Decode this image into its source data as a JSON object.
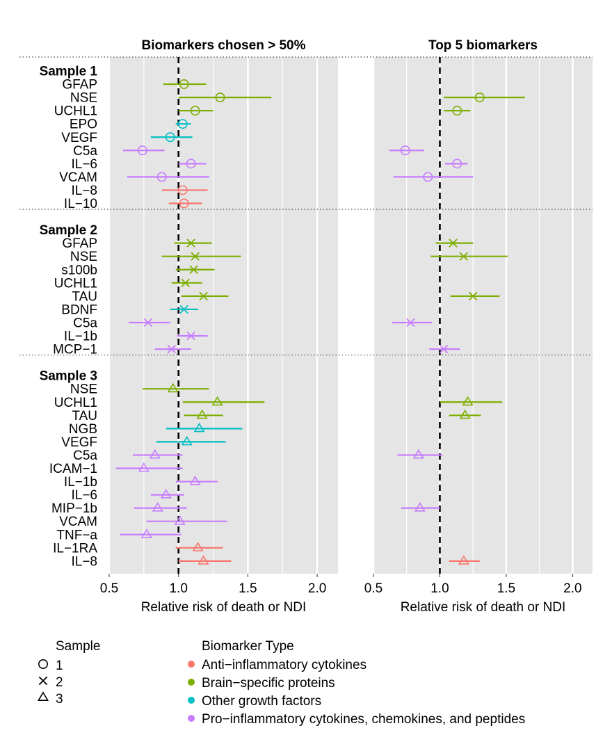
{
  "chart_data": {
    "type": "forest",
    "panels": [
      {
        "title": "Biomarkers chosen > 50%",
        "xlabel": "Relative risk of death or NDI"
      },
      {
        "title": "Top 5 biomarkers",
        "xlabel": "Relative risk of death or NDI"
      }
    ],
    "xlim": [
      0.5,
      2.15
    ],
    "xticks": [
      0.5,
      1.0,
      1.5,
      2.0
    ],
    "xtick_labels": [
      "0.5",
      "1.0",
      "1.5",
      "2.0"
    ],
    "reference_line": 1.0,
    "grid": true,
    "type_colors": {
      "anti": "#F8766D",
      "brain": "#7CAE00",
      "growth": "#00BFC4",
      "pro": "#C77CFF"
    },
    "groups": [
      {
        "label": "Sample 1",
        "sample": 1,
        "rows": [
          {
            "name": "GFAP",
            "type": "brain",
            "p1": [
              1.04,
              0.89,
              1.2
            ],
            "p2": null
          },
          {
            "name": "NSE",
            "type": "brain",
            "p1": [
              1.3,
              1.0,
              1.67
            ],
            "p2": [
              1.3,
              1.03,
              1.64
            ]
          },
          {
            "name": "UCHL1",
            "type": "brain",
            "p1": [
              1.12,
              1.0,
              1.25
            ],
            "p2": [
              1.13,
              1.03,
              1.23
            ]
          },
          {
            "name": "EPO",
            "type": "growth",
            "p1": [
              1.03,
              0.98,
              1.09
            ],
            "p2": null
          },
          {
            "name": "VEGF",
            "type": "growth",
            "p1": [
              0.94,
              0.8,
              1.1
            ],
            "p2": null
          },
          {
            "name": "C5a",
            "type": "pro",
            "p1": [
              0.74,
              0.6,
              0.9
            ],
            "p2": [
              0.74,
              0.62,
              0.88
            ]
          },
          {
            "name": "IL−6",
            "type": "pro",
            "p1": [
              1.09,
              1.0,
              1.2
            ],
            "p2": [
              1.13,
              1.04,
              1.21
            ]
          },
          {
            "name": "VCAM",
            "type": "pro",
            "p1": [
              0.88,
              0.63,
              1.22
            ],
            "p2": [
              0.91,
              0.65,
              1.25
            ]
          },
          {
            "name": "IL−8",
            "type": "anti",
            "p1": [
              1.03,
              0.88,
              1.21
            ],
            "p2": null
          },
          {
            "name": "IL−10",
            "type": "anti",
            "p1": [
              1.04,
              0.93,
              1.17
            ],
            "p2": null
          }
        ]
      },
      {
        "label": "Sample 2",
        "sample": 2,
        "rows": [
          {
            "name": "GFAP",
            "type": "brain",
            "p1": [
              1.09,
              0.97,
              1.24
            ],
            "p2": [
              1.1,
              0.97,
              1.25
            ]
          },
          {
            "name": "NSE",
            "type": "brain",
            "p1": [
              1.12,
              0.88,
              1.45
            ],
            "p2": [
              1.18,
              0.93,
              1.51
            ]
          },
          {
            "name": "s100b",
            "type": "brain",
            "p1": [
              1.11,
              0.98,
              1.26
            ],
            "p2": null
          },
          {
            "name": "UCHL1",
            "type": "brain",
            "p1": [
              1.05,
              0.95,
              1.17
            ],
            "p2": null
          },
          {
            "name": "TAU",
            "type": "brain",
            "p1": [
              1.18,
              1.02,
              1.36
            ],
            "p2": [
              1.25,
              1.08,
              1.45
            ]
          },
          {
            "name": "BDNF",
            "type": "growth",
            "p1": [
              1.04,
              0.94,
              1.14
            ],
            "p2": null
          },
          {
            "name": "C5a",
            "type": "pro",
            "p1": [
              0.78,
              0.64,
              0.94
            ],
            "p2": [
              0.78,
              0.64,
              0.94
            ]
          },
          {
            "name": "IL−1b",
            "type": "pro",
            "p1": [
              1.09,
              0.99,
              1.21
            ],
            "p2": null
          },
          {
            "name": "MCP−1",
            "type": "pro",
            "p1": [
              0.95,
              0.83,
              1.09
            ],
            "p2": [
              1.03,
              0.92,
              1.15
            ]
          }
        ]
      },
      {
        "label": "Sample 3",
        "sample": 3,
        "rows": [
          {
            "name": "NSE",
            "type": "brain",
            "p1": [
              0.96,
              0.74,
              1.22
            ],
            "p2": null
          },
          {
            "name": "UCHL1",
            "type": "brain",
            "p1": [
              1.28,
              1.03,
              1.62
            ],
            "p2": [
              1.21,
              1.0,
              1.47
            ]
          },
          {
            "name": "TAU",
            "type": "brain",
            "p1": [
              1.17,
              1.04,
              1.32
            ],
            "p2": [
              1.19,
              1.07,
              1.31
            ]
          },
          {
            "name": "NGB",
            "type": "growth",
            "p1": [
              1.15,
              0.91,
              1.46
            ],
            "p2": null
          },
          {
            "name": "VEGF",
            "type": "growth",
            "p1": [
              1.06,
              0.84,
              1.34
            ],
            "p2": null
          },
          {
            "name": "C5a",
            "type": "pro",
            "p1": [
              0.83,
              0.67,
              1.03
            ],
            "p2": [
              0.84,
              0.68,
              1.02
            ]
          },
          {
            "name": "ICAM−1",
            "type": "pro",
            "p1": [
              0.75,
              0.55,
              1.03
            ],
            "p2": null
          },
          {
            "name": "IL−1b",
            "type": "pro",
            "p1": [
              1.12,
              0.98,
              1.28
            ],
            "p2": null
          },
          {
            "name": "IL−6",
            "type": "pro",
            "p1": [
              0.91,
              0.8,
              1.04
            ],
            "p2": null
          },
          {
            "name": "MIP−1b",
            "type": "pro",
            "p1": [
              0.85,
              0.68,
              1.06
            ],
            "p2": [
              0.85,
              0.71,
              1.0
            ]
          },
          {
            "name": "VCAM",
            "type": "pro",
            "p1": [
              1.01,
              0.77,
              1.35
            ],
            "p2": null
          },
          {
            "name": "TNF−a",
            "type": "pro",
            "p1": [
              0.77,
              0.58,
              1.02
            ],
            "p2": null
          },
          {
            "name": "IL−1RA",
            "type": "anti",
            "p1": [
              1.14,
              0.98,
              1.32
            ],
            "p2": null
          },
          {
            "name": "IL−8",
            "type": "anti",
            "p1": [
              1.18,
              1.0,
              1.38
            ],
            "p2": [
              1.18,
              1.07,
              1.3
            ]
          }
        ]
      }
    ],
    "legend": {
      "position": "bottom",
      "sample_title": "Sample",
      "samples": [
        {
          "label": "1",
          "shape": "circle"
        },
        {
          "label": "2",
          "shape": "cross"
        },
        {
          "label": "3",
          "shape": "triangle"
        }
      ],
      "type_title": "Biomarker Type",
      "types": [
        {
          "key": "anti",
          "label": "Anti−inflammatory cytokines"
        },
        {
          "key": "brain",
          "label": "Brain−specific proteins"
        },
        {
          "key": "growth",
          "label": "Other growth factors"
        },
        {
          "key": "pro",
          "label": "Pro−inflammatory cytokines, chemokines, and peptides"
        }
      ]
    }
  }
}
